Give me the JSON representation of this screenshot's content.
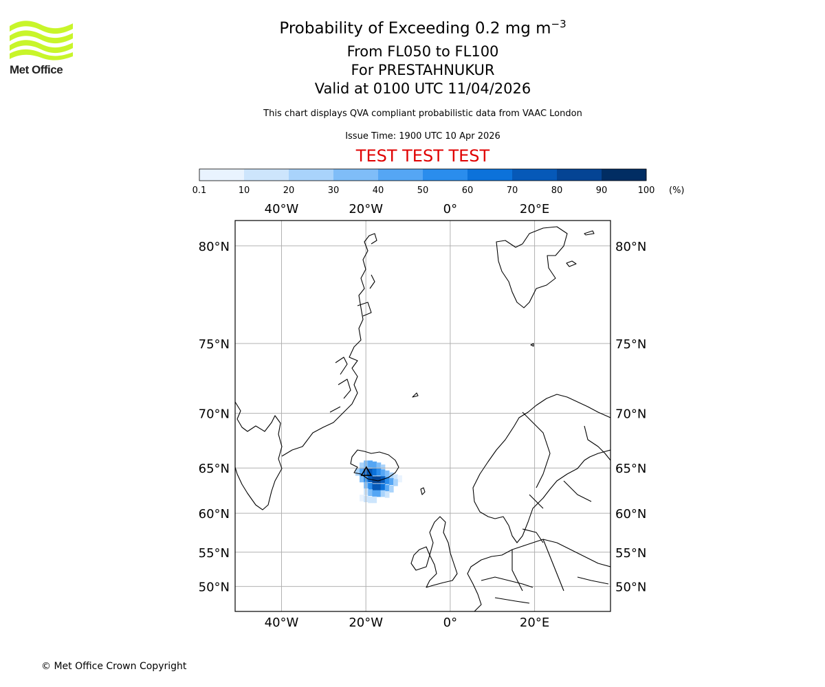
{
  "logo": {
    "text": "Met Office",
    "color": "#c8f52a"
  },
  "header": {
    "title_prefix": "Probability of Exceeding 0.2 mg m",
    "title_exponent": "−3",
    "flight_levels": "From FL050 to FL100",
    "volcano": "For PRESTAHNUKUR",
    "valid": "Valid at 0100 UTC 11/04/2026",
    "note": "This chart displays QVA compliant probabilistic data from VAAC London",
    "issue": "Issue Time: 1900 UTC 10 Apr 2026",
    "test_banner": "TEST TEST TEST"
  },
  "colorbar": {
    "ticks": [
      "0.1",
      "10",
      "20",
      "30",
      "40",
      "50",
      "60",
      "70",
      "80",
      "90",
      "100"
    ],
    "unit": "(%)",
    "colors": [
      "#e9f3fe",
      "#cde5fc",
      "#a9d3fb",
      "#7fbdf8",
      "#55a6f4",
      "#2a8ded",
      "#0c72da",
      "#0659b8",
      "#044494",
      "#012d63"
    ]
  },
  "map": {
    "lon_ticks": [
      "40°W",
      "20°W",
      "0°",
      "20°E"
    ],
    "lon_values": [
      -40,
      -20,
      0,
      20
    ],
    "lat_ticks": [
      "80°N",
      "75°N",
      "70°N",
      "65°N",
      "60°N",
      "55°N",
      "50°N"
    ],
    "lat_values": [
      80,
      75,
      70,
      65,
      60,
      55,
      50
    ],
    "lon_range": [
      -51,
      38
    ],
    "lat_range": [
      46,
      81
    ],
    "volcano_marker": {
      "lon": -19.9,
      "lat": 64.6
    },
    "ash_probability_cells": [
      {
        "lon": -21.0,
        "lat": 65.2,
        "p": 25
      },
      {
        "lon": -20.0,
        "lat": 65.4,
        "p": 35
      },
      {
        "lon": -19.0,
        "lat": 65.4,
        "p": 45
      },
      {
        "lon": -18.0,
        "lat": 65.3,
        "p": 40
      },
      {
        "lon": -17.0,
        "lat": 65.2,
        "p": 30
      },
      {
        "lon": -16.0,
        "lat": 65.0,
        "p": 25
      },
      {
        "lon": -22.0,
        "lat": 64.6,
        "p": 20
      },
      {
        "lon": -21.0,
        "lat": 64.6,
        "p": 45
      },
      {
        "lon": -20.0,
        "lat": 64.6,
        "p": 75
      },
      {
        "lon": -19.0,
        "lat": 64.6,
        "p": 70
      },
      {
        "lon": -18.0,
        "lat": 64.6,
        "p": 65
      },
      {
        "lon": -17.0,
        "lat": 64.6,
        "p": 55
      },
      {
        "lon": -16.0,
        "lat": 64.5,
        "p": 45
      },
      {
        "lon": -15.0,
        "lat": 64.4,
        "p": 35
      },
      {
        "lon": -14.0,
        "lat": 64.2,
        "p": 25
      },
      {
        "lon": -13.0,
        "lat": 64.0,
        "p": 15
      },
      {
        "lon": -12.0,
        "lat": 63.9,
        "p": 8
      },
      {
        "lon": -21.0,
        "lat": 63.9,
        "p": 30
      },
      {
        "lon": -20.0,
        "lat": 63.9,
        "p": 55
      },
      {
        "lon": -19.0,
        "lat": 63.9,
        "p": 75
      },
      {
        "lon": -18.0,
        "lat": 63.8,
        "p": 85
      },
      {
        "lon": -17.0,
        "lat": 63.8,
        "p": 80
      },
      {
        "lon": -16.0,
        "lat": 63.8,
        "p": 70
      },
      {
        "lon": -15.0,
        "lat": 63.7,
        "p": 55
      },
      {
        "lon": -14.0,
        "lat": 63.6,
        "p": 40
      },
      {
        "lon": -13.0,
        "lat": 63.5,
        "p": 25
      },
      {
        "lon": -20.0,
        "lat": 63.2,
        "p": 35
      },
      {
        "lon": -19.0,
        "lat": 63.1,
        "p": 55
      },
      {
        "lon": -18.0,
        "lat": 63.0,
        "p": 70
      },
      {
        "lon": -17.0,
        "lat": 63.0,
        "p": 75
      },
      {
        "lon": -16.0,
        "lat": 63.0,
        "p": 65
      },
      {
        "lon": -15.0,
        "lat": 62.9,
        "p": 45
      },
      {
        "lon": -14.0,
        "lat": 62.8,
        "p": 25
      },
      {
        "lon": -20.0,
        "lat": 62.5,
        "p": 15
      },
      {
        "lon": -19.0,
        "lat": 62.4,
        "p": 30
      },
      {
        "lon": -18.0,
        "lat": 62.3,
        "p": 45
      },
      {
        "lon": -17.0,
        "lat": 62.3,
        "p": 40
      },
      {
        "lon": -16.0,
        "lat": 62.3,
        "p": 25
      },
      {
        "lon": -15.0,
        "lat": 62.2,
        "p": 12
      },
      {
        "lon": -21.0,
        "lat": 61.8,
        "p": 6
      },
      {
        "lon": -20.0,
        "lat": 61.7,
        "p": 12
      },
      {
        "lon": -19.0,
        "lat": 61.6,
        "p": 15
      },
      {
        "lon": -18.0,
        "lat": 61.6,
        "p": 10
      }
    ]
  },
  "footer": {
    "copyright": "© Met Office Crown Copyright"
  }
}
